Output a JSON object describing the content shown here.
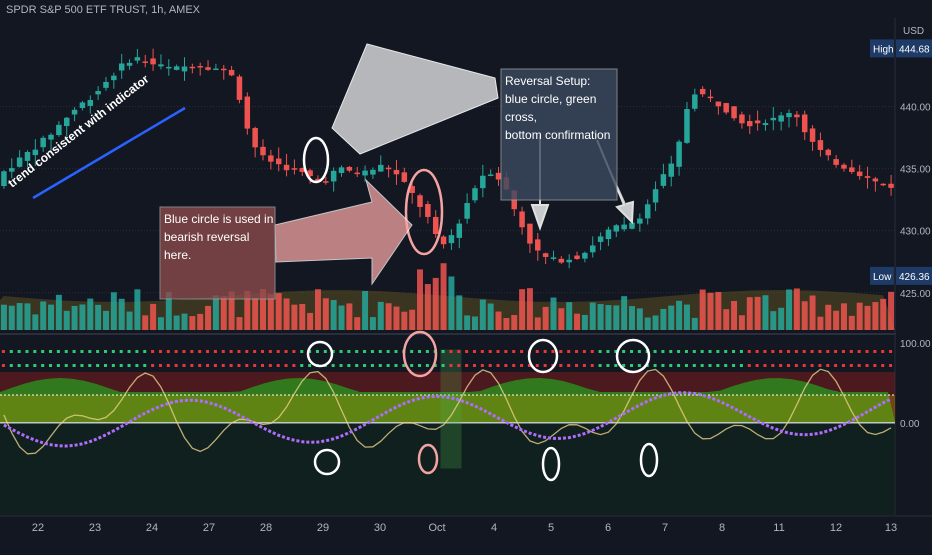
{
  "title": "SPDR S&P 500 ETF TRUST, 1h, AMEX",
  "currency": "USD",
  "chart_data": {
    "type": "candlestick",
    "interval": "1h",
    "y_axis": {
      "ticks": [
        "440.00",
        "435.00",
        "430.00",
        "425.00"
      ],
      "range": [
        422,
        446
      ]
    },
    "high_label": "High",
    "high_value": "444.68",
    "low_label": "Low",
    "low_value": "426.36",
    "x_ticks": [
      "22",
      "23",
      "24",
      "27",
      "28",
      "29",
      "30",
      "Oct",
      "4",
      "5",
      "6",
      "7",
      "8",
      "11",
      "12",
      "13"
    ],
    "price_path": [
      [
        0,
        434.5
      ],
      [
        3,
        436
      ],
      [
        6,
        437.5
      ],
      [
        9,
        439.5
      ],
      [
        12,
        441
      ],
      [
        15,
        443
      ],
      [
        17,
        444
      ],
      [
        19,
        443.5
      ],
      [
        22,
        443
      ],
      [
        25,
        443.4
      ],
      [
        28,
        443
      ],
      [
        30,
        442.5
      ],
      [
        31,
        439
      ],
      [
        33,
        436
      ],
      [
        36,
        435.2
      ],
      [
        39,
        434.5
      ],
      [
        41,
        433.8
      ],
      [
        43,
        435
      ],
      [
        46,
        434.6
      ],
      [
        49,
        435.3
      ],
      [
        51,
        434.2
      ],
      [
        53,
        432.5
      ],
      [
        55,
        430.5
      ],
      [
        56,
        428.5
      ],
      [
        58,
        430
      ],
      [
        60,
        433
      ],
      [
        62,
        435
      ],
      [
        64,
        434
      ],
      [
        66,
        431
      ],
      [
        68,
        428.5
      ],
      [
        70,
        427.6
      ],
      [
        72,
        427.7
      ],
      [
        74,
        428
      ],
      [
        76,
        429.2
      ],
      [
        78,
        430.2
      ],
      [
        80,
        430.4
      ],
      [
        82,
        431.5
      ],
      [
        84,
        434
      ],
      [
        86,
        435.6
      ],
      [
        88,
        441.3
      ],
      [
        90,
        440.8
      ],
      [
        92,
        440
      ],
      [
        95,
        438.6
      ],
      [
        97,
        438.8
      ],
      [
        99,
        439
      ],
      [
        101,
        439.8
      ],
      [
        103,
        437.5
      ],
      [
        105,
        436
      ],
      [
        107,
        435.3
      ],
      [
        109,
        434.8
      ],
      [
        111,
        434
      ],
      [
        113,
        433.6
      ]
    ],
    "indicator_panel": {
      "ticks": [
        "100.00",
        "0.00"
      ],
      "series": [
        "oscillator",
        "signal"
      ]
    },
    "annotations": [
      {
        "text": "trend consistent with indicator"
      },
      {
        "lines": [
          "Blue circle is used in",
          "bearish reversal",
          "here."
        ]
      },
      {
        "lines": [
          "Reversal Setup:",
          "blue circle, green",
          "cross,",
          "bottom confirmation"
        ]
      }
    ]
  },
  "colors": {
    "up": "#26a69a",
    "down": "#ef5350",
    "grid": "#2a2e39",
    "background": "#131722",
    "volume_band": "#6b5a1e",
    "osc": "#e8d08a",
    "signal": "#b06cff",
    "green_fill": "#2e8b1e",
    "red_fill": "#7a1c1c",
    "yellow_fill": "#b59a00",
    "label_bg": "#1e3a66"
  }
}
